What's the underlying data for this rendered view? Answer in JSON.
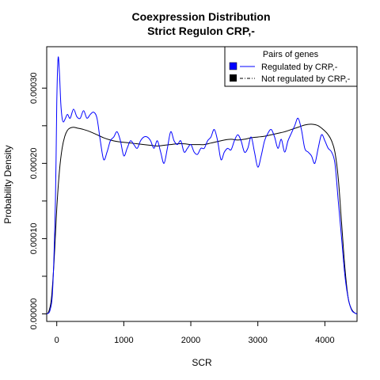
{
  "chart_data": {
    "type": "line",
    "title": "Coexpression Distribution",
    "subtitle": "Strict Regulon CRP,-",
    "xlabel": "SCR",
    "ylabel": "Probability Density",
    "xlim": [
      -150,
      4480
    ],
    "ylim": [
      -1e-05,
      0.000355
    ],
    "x_ticks": [
      0,
      1000,
      2000,
      3000,
      4000
    ],
    "x_tick_labels": [
      "0",
      "1000",
      "2000",
      "3000",
      "4000"
    ],
    "y_ticks": [
      0,
      5e-05,
      0.0001,
      0.00015,
      0.0002,
      0.00025,
      0.0003
    ],
    "y_tick_labels": [
      "0.00000",
      "",
      "0.00010",
      "",
      "0.00020",
      "",
      "0.00030"
    ],
    "grid": false,
    "legend": {
      "title": "Pairs of genes",
      "position": "top-right",
      "entries": [
        "Regulated by  CRP,-",
        "Not regulated by  CRP,-"
      ]
    },
    "series": [
      {
        "name": "Regulated by  CRP,-",
        "color": "#0000ff",
        "x": [
          -150,
          -100,
          -60,
          -20,
          0,
          20,
          40,
          60,
          80,
          100,
          130,
          160,
          200,
          250,
          300,
          350,
          400,
          450,
          500,
          550,
          600,
          650,
          700,
          750,
          800,
          850,
          900,
          950,
          1000,
          1050,
          1100,
          1150,
          1200,
          1250,
          1300,
          1350,
          1400,
          1450,
          1500,
          1550,
          1600,
          1650,
          1700,
          1750,
          1800,
          1850,
          1900,
          1950,
          2000,
          2050,
          2100,
          2150,
          2200,
          2250,
          2300,
          2350,
          2400,
          2450,
          2500,
          2550,
          2600,
          2650,
          2700,
          2750,
          2800,
          2850,
          2900,
          2950,
          3000,
          3050,
          3100,
          3150,
          3200,
          3250,
          3300,
          3350,
          3400,
          3450,
          3500,
          3550,
          3600,
          3650,
          3700,
          3750,
          3800,
          3850,
          3900,
          3950,
          4000,
          4050,
          4100,
          4150,
          4200,
          4250,
          4300,
          4350,
          4400,
          4450,
          4480
        ],
        "y": [
          0.0,
          5e-06,
          3.5e-05,
          0.00015,
          0.00028,
          0.00034,
          0.00032,
          0.00028,
          0.00026,
          0.000255,
          0.00026,
          0.000265,
          0.00026,
          0.000272,
          0.000262,
          0.00026,
          0.00027,
          0.00026,
          0.000265,
          0.000268,
          0.00026,
          0.00023,
          0.000205,
          0.000215,
          0.00023,
          0.000235,
          0.000242,
          0.00023,
          0.00021,
          0.00022,
          0.00023,
          0.000225,
          0.00022,
          0.00023,
          0.000235,
          0.000235,
          0.00023,
          0.00022,
          0.00023,
          0.000215,
          0.0002,
          0.00022,
          0.000242,
          0.00023,
          0.000225,
          0.00023,
          0.000215,
          0.00022,
          0.000225,
          0.000215,
          0.000212,
          0.00022,
          0.00022,
          0.00023,
          0.000235,
          0.000245,
          0.00023,
          0.000205,
          0.000215,
          0.00022,
          0.000218,
          0.00023,
          0.000238,
          0.00023,
          0.000215,
          0.00022,
          0.000235,
          0.000215,
          0.000195,
          0.00021,
          0.00023,
          0.00024,
          0.000245,
          0.000235,
          0.00022,
          0.000232,
          0.000215,
          0.00023,
          0.00024,
          0.00025,
          0.00026,
          0.000245,
          0.00022,
          0.000215,
          0.00021,
          0.0002,
          0.00022,
          0.000238,
          0.00023,
          0.00022,
          0.000215,
          0.0002,
          0.00015,
          0.0001,
          5e-05,
          2e-05,
          5e-06,
          1e-06,
          0.0
        ]
      },
      {
        "name": "Not regulated by  CRP,-",
        "color": "#000000",
        "x": [
          -150,
          -120,
          -80,
          -40,
          0,
          40,
          80,
          120,
          160,
          200,
          250,
          300,
          400,
          500,
          600,
          700,
          800,
          900,
          1000,
          1100,
          1200,
          1300,
          1400,
          1500,
          1600,
          1700,
          1800,
          1900,
          2000,
          2100,
          2200,
          2300,
          2400,
          2500,
          2600,
          2700,
          2800,
          2900,
          3000,
          3100,
          3200,
          3300,
          3400,
          3500,
          3600,
          3700,
          3800,
          3900,
          4000,
          4050,
          4100,
          4150,
          4200,
          4250,
          4300,
          4350,
          4400,
          4450,
          4480
        ],
        "y": [
          0.0,
          3e-06,
          2e-05,
          7e-05,
          0.00014,
          0.00019,
          0.00022,
          0.000236,
          0.000244,
          0.000247,
          0.000248,
          0.000247,
          0.000245,
          0.000242,
          0.000238,
          0.000234,
          0.000231,
          0.000229,
          0.000228,
          0.000227,
          0.000226,
          0.000225,
          0.000224,
          0.000223,
          0.000224,
          0.000225,
          0.000226,
          0.000226,
          0.000225,
          0.000225,
          0.000225,
          0.000227,
          0.000229,
          0.000231,
          0.000232,
          0.000231,
          0.000232,
          0.000234,
          0.000235,
          0.000236,
          0.000238,
          0.00024,
          0.000242,
          0.000245,
          0.000248,
          0.000251,
          0.000252,
          0.00025,
          0.000243,
          0.000238,
          0.00023,
          0.000215,
          0.00018,
          0.00012,
          6e-05,
          2e-05,
          6e-06,
          1e-06,
          0.0
        ]
      }
    ]
  }
}
